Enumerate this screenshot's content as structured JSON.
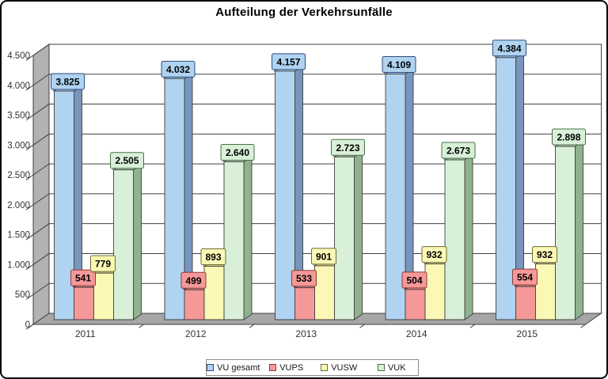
{
  "title": "Aufteilung der Verkehrsunfälle",
  "chart_data": {
    "type": "bar",
    "style": "3d-column",
    "title": "Aufteilung der Verkehrsunfälle",
    "categories": [
      "2011",
      "2012",
      "2013",
      "2014",
      "2015"
    ],
    "series": [
      {
        "name": "VU gesamt",
        "values": [
          3825,
          4032,
          4157,
          4109,
          4384
        ],
        "labels": [
          "3.825",
          "4.032",
          "4.157",
          "4.109",
          "4.384"
        ],
        "color": "#AFD3F0",
        "side": "#7795BD",
        "top": "#A3C6E6",
        "dark": "#2F4E7E"
      },
      {
        "name": "VUPS",
        "values": [
          541,
          499,
          533,
          504,
          554
        ],
        "labels": [
          "541",
          "499",
          "533",
          "504",
          "554"
        ],
        "color": "#F59898",
        "side": "#C4716F",
        "top": "#D88080",
        "dark": "#8E3B3B"
      },
      {
        "name": "VUSW",
        "values": [
          779,
          893,
          901,
          932,
          932
        ],
        "labels": [
          "779",
          "893",
          "901",
          "932",
          "932"
        ],
        "color": "#FBF8B5",
        "side": "#BFBB72",
        "top": "#D6D285",
        "dark": "#6E6A35"
      },
      {
        "name": "VUK",
        "values": [
          2505,
          2640,
          2723,
          2673,
          2898
        ],
        "labels": [
          "2.505",
          "2.640",
          "2.723",
          "2.673",
          "2.898"
        ],
        "color": "#D8F0D8",
        "side": "#8FB28F",
        "top": "#B2D0B2",
        "dark": "#4A6F4A"
      }
    ],
    "y_axis": {
      "min": 0,
      "max": 4500,
      "step": 500,
      "ticks": [
        {
          "v": 0,
          "label": "0"
        },
        {
          "v": 500,
          "label": "500"
        },
        {
          "v": 1000,
          "label": "1.000"
        },
        {
          "v": 1500,
          "label": "1.500"
        },
        {
          "v": 2000,
          "label": "2.000"
        },
        {
          "v": 2500,
          "label": "2.500"
        },
        {
          "v": 3000,
          "label": "3.000"
        },
        {
          "v": 3500,
          "label": "3.500"
        },
        {
          "v": 4000,
          "label": "4.000"
        },
        {
          "v": 4500,
          "label": "4.500"
        }
      ]
    },
    "grid": true,
    "legend_position": "bottom",
    "colors": {
      "wall_left": "#B2B2B2",
      "floor": "#A6A6A6",
      "back_wall": "#FFFFFF",
      "grid_stroke": "#404040",
      "axis_text": "#333333",
      "background": "#FFFFFF",
      "frame_border": "#000000"
    }
  }
}
